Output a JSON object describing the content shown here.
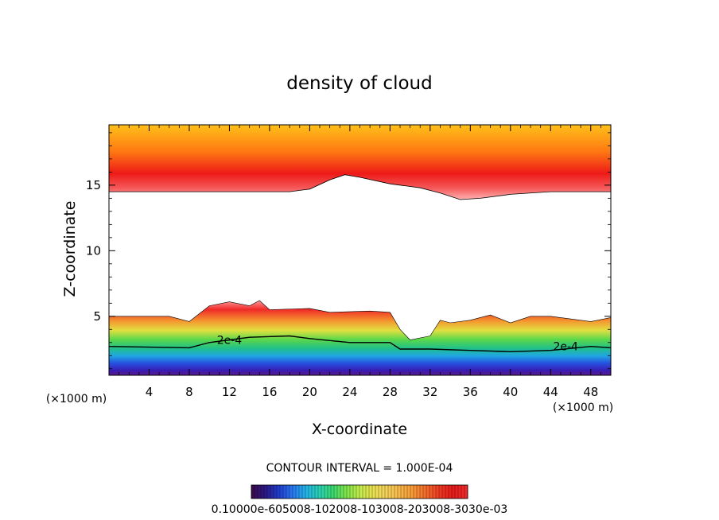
{
  "chart_data": {
    "type": "heatmap",
    "title": "density of cloud",
    "xlabel": "X-coordinate",
    "ylabel": "Z-coordinate",
    "x_unit_left": "(×1000 m)",
    "x_unit_right": "(×1000 m)",
    "xlim": [
      0,
      50
    ],
    "ylim": [
      0.5,
      19.6
    ],
    "x_ticks": [
      4,
      8,
      12,
      16,
      20,
      24,
      28,
      32,
      36,
      40,
      44,
      48
    ],
    "x_tick_labels": [
      "4",
      "8",
      "12",
      "16",
      "20",
      "24",
      "28",
      "32",
      "36",
      "40",
      "44",
      "48"
    ],
    "y_ticks": [
      5,
      10,
      15
    ],
    "y_tick_labels": [
      "5",
      "10",
      "15"
    ],
    "contour_labels": [
      {
        "text": "2e-4",
        "x": 12.0,
        "y": 3.2
      },
      {
        "text": "2e-4",
        "x": 45.5,
        "y": 2.7
      }
    ],
    "contour_interval_text": "CONTOUR INTERVAL = 1.000E-04",
    "colorbar_labels_text": "0.1000e-05",
    "colorbar_labels_text_2": "0.6000e-04",
    "colorbar_labels_text_3": "0.1200e-03",
    "colorbar_labels_text_4": "0.1800e-03",
    "colorbar_labels_text_5": "0.2400e-03",
    "colorbar_labels_text_6": "0.3000e-03",
    "colorbar_labels_raw": "0.10000e-605008-102008-103008-203008-3030e-03",
    "upper_cloud": {
      "bottom_z": [
        [
          0,
          14.5
        ],
        [
          18,
          14.5
        ],
        [
          20,
          14.7
        ],
        [
          22,
          15.4
        ],
        [
          23.5,
          15.8
        ],
        [
          25,
          15.6
        ],
        [
          28,
          15.1
        ],
        [
          31,
          14.8
        ],
        [
          33,
          14.4
        ],
        [
          35,
          13.9
        ],
        [
          37,
          14.0
        ],
        [
          40,
          14.3
        ],
        [
          44,
          14.5
        ],
        [
          50,
          14.5
        ]
      ],
      "top_z": 19.6
    },
    "lower_cloud": {
      "top_z": [
        [
          0,
          5.0
        ],
        [
          6,
          5.0
        ],
        [
          8,
          4.6
        ],
        [
          10,
          5.8
        ],
        [
          12,
          6.1
        ],
        [
          14,
          5.8
        ],
        [
          15,
          6.2
        ],
        [
          16,
          5.5
        ],
        [
          20,
          5.6
        ],
        [
          22,
          5.3
        ],
        [
          26,
          5.4
        ],
        [
          28,
          5.3
        ],
        [
          29,
          4.0
        ],
        [
          30,
          3.2
        ],
        [
          32,
          3.5
        ],
        [
          33,
          4.7
        ],
        [
          34,
          4.5
        ],
        [
          36,
          4.7
        ],
        [
          38,
          5.1
        ],
        [
          40,
          4.5
        ],
        [
          42,
          5.0
        ],
        [
          44,
          5.0
        ],
        [
          48,
          4.6
        ],
        [
          50,
          4.9
        ]
      ],
      "contour_2e4_z": [
        [
          0,
          2.7
        ],
        [
          8,
          2.6
        ],
        [
          10,
          3.0
        ],
        [
          12,
          3.2
        ],
        [
          14,
          3.4
        ],
        [
          18,
          3.5
        ],
        [
          20,
          3.3
        ],
        [
          24,
          3.0
        ],
        [
          28,
          3.0
        ],
        [
          29,
          2.5
        ],
        [
          32,
          2.5
        ],
        [
          36,
          2.4
        ],
        [
          40,
          2.3
        ],
        [
          44,
          2.4
        ],
        [
          48,
          2.7
        ],
        [
          50,
          2.6
        ]
      ],
      "base_z": 0.5
    },
    "colorbar": {
      "min": 1e-06,
      "max": 0.00035,
      "colors": [
        "#3a0a50",
        "#2a1a8a",
        "#1f3fd0",
        "#2a78f0",
        "#22b4e6",
        "#2ad0b0",
        "#3ad870",
        "#7ee44a",
        "#c0ec4a",
        "#e8e050",
        "#f4d25a",
        "#f8b848",
        "#f89a36",
        "#f46a2a",
        "#ee3a22",
        "#e61a1a",
        "#ec2a2a"
      ]
    }
  }
}
